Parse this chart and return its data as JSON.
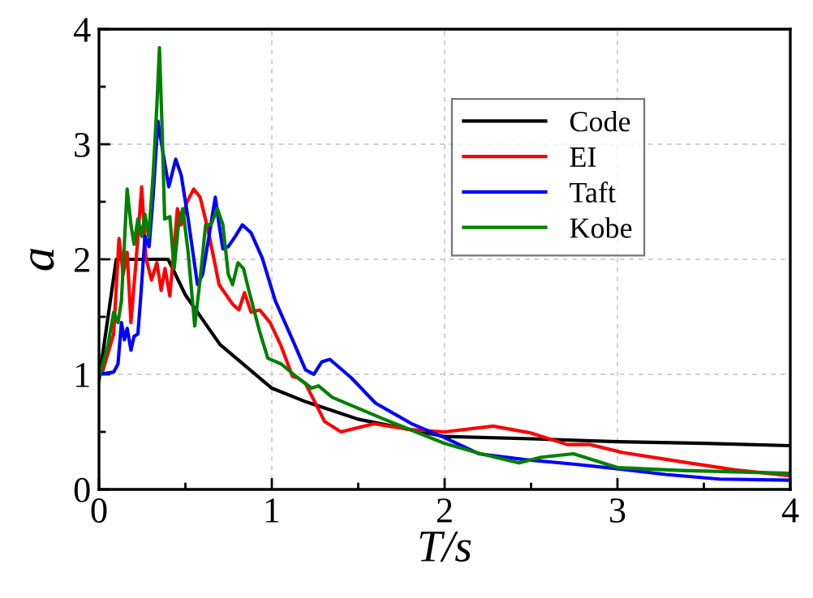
{
  "chart_data": {
    "type": "line",
    "xlabel": "T/s",
    "ylabel": "a",
    "xlim": [
      0,
      4
    ],
    "ylim": [
      0,
      4
    ],
    "xticks": [
      0,
      1,
      2,
      3,
      4
    ],
    "yticks": [
      0,
      1,
      2,
      3,
      4
    ],
    "grid": true,
    "legend": "top right",
    "line_style": "solid",
    "marker": "none",
    "series": [
      {
        "name": "Code",
        "color": "#000000",
        "x": [
          0,
          0.1,
          0.4,
          0.5,
          0.7,
          1.0,
          1.2,
          1.5,
          2.0,
          2.5,
          3.0,
          3.5,
          4.0
        ],
        "values": [
          0.95,
          2.0,
          2.0,
          1.69,
          1.26,
          0.88,
          0.76,
          0.61,
          0.46,
          0.44,
          0.415,
          0.4,
          0.38
        ]
      },
      {
        "name": "EI",
        "color": "#ff0000",
        "x": [
          0.02,
          0.085,
          0.116,
          0.14,
          0.163,
          0.185,
          0.216,
          0.247,
          0.272,
          0.304,
          0.335,
          0.36,
          0.382,
          0.41,
          0.454,
          0.476,
          0.507,
          0.548,
          0.585,
          0.632,
          0.695,
          0.773,
          0.81,
          0.842,
          0.88,
          0.93,
          0.99,
          1.05,
          1.12,
          1.15,
          1.195,
          1.306,
          1.4,
          1.59,
          1.805,
          2.0,
          2.28,
          2.5,
          2.71,
          2.84,
          3.03,
          3.37,
          3.68,
          3.996
        ],
        "values": [
          1.02,
          1.35,
          2.18,
          1.87,
          2.06,
          1.45,
          2.01,
          2.63,
          2.01,
          1.82,
          1.97,
          1.73,
          1.92,
          1.68,
          2.44,
          2.3,
          2.49,
          2.61,
          2.54,
          2.25,
          1.78,
          1.61,
          1.56,
          1.71,
          1.54,
          1.56,
          1.45,
          1.26,
          0.98,
          0.97,
          0.92,
          0.59,
          0.5,
          0.57,
          0.52,
          0.5,
          0.55,
          0.49,
          0.39,
          0.39,
          0.32,
          0.24,
          0.17,
          0.12
        ]
      },
      {
        "name": "Taft",
        "color": "#0000ff",
        "x": [
          0.0,
          0.085,
          0.11,
          0.13,
          0.147,
          0.163,
          0.185,
          0.203,
          0.225,
          0.24,
          0.266,
          0.29,
          0.313,
          0.341,
          0.372,
          0.404,
          0.444,
          0.476,
          0.516,
          0.548,
          0.57,
          0.6,
          0.642,
          0.673,
          0.695,
          0.717,
          0.748,
          0.789,
          0.83,
          0.88,
          0.945,
          1.02,
          1.12,
          1.195,
          1.243,
          1.29,
          1.336,
          1.46,
          1.6,
          1.81,
          2.0,
          2.197,
          2.46,
          2.745,
          2.996,
          3.277,
          3.59,
          3.996
        ],
        "values": [
          1.0,
          1.02,
          1.09,
          1.45,
          1.3,
          1.4,
          1.21,
          1.33,
          1.35,
          1.64,
          2.2,
          2.11,
          2.54,
          3.2,
          2.91,
          2.63,
          2.87,
          2.73,
          2.35,
          2.01,
          1.78,
          1.87,
          2.25,
          2.54,
          2.3,
          2.09,
          2.11,
          2.2,
          2.3,
          2.23,
          2.01,
          1.64,
          1.3,
          1.04,
          1.0,
          1.11,
          1.13,
          0.97,
          0.75,
          0.57,
          0.45,
          0.31,
          0.26,
          0.22,
          0.18,
          0.13,
          0.09,
          0.08
        ]
      },
      {
        "name": "Kobe",
        "color": "#008000",
        "x": [
          0.0,
          0.053,
          0.085,
          0.11,
          0.13,
          0.163,
          0.185,
          0.203,
          0.225,
          0.247,
          0.266,
          0.288,
          0.313,
          0.335,
          0.35,
          0.366,
          0.38,
          0.41,
          0.435,
          0.46,
          0.485,
          0.516,
          0.554,
          0.585,
          0.617,
          0.648,
          0.685,
          0.717,
          0.748,
          0.773,
          0.804,
          0.836,
          0.867,
          0.93,
          0.977,
          1.055,
          1.15,
          1.23,
          1.27,
          1.35,
          1.65,
          2.0,
          2.21,
          2.43,
          2.56,
          2.745,
          3.0,
          3.37,
          3.996
        ],
        "values": [
          0.97,
          1.26,
          1.54,
          1.45,
          1.64,
          2.61,
          2.3,
          2.13,
          2.35,
          2.2,
          2.39,
          2.2,
          2.73,
          3.34,
          3.84,
          3.1,
          2.35,
          2.37,
          1.92,
          2.3,
          2.44,
          2.06,
          1.42,
          1.82,
          2.3,
          2.3,
          2.44,
          2.3,
          1.87,
          1.78,
          1.97,
          1.92,
          1.73,
          1.37,
          1.14,
          1.09,
          0.97,
          0.88,
          0.9,
          0.8,
          0.61,
          0.4,
          0.31,
          0.23,
          0.28,
          0.31,
          0.19,
          0.165,
          0.14
        ]
      }
    ]
  }
}
